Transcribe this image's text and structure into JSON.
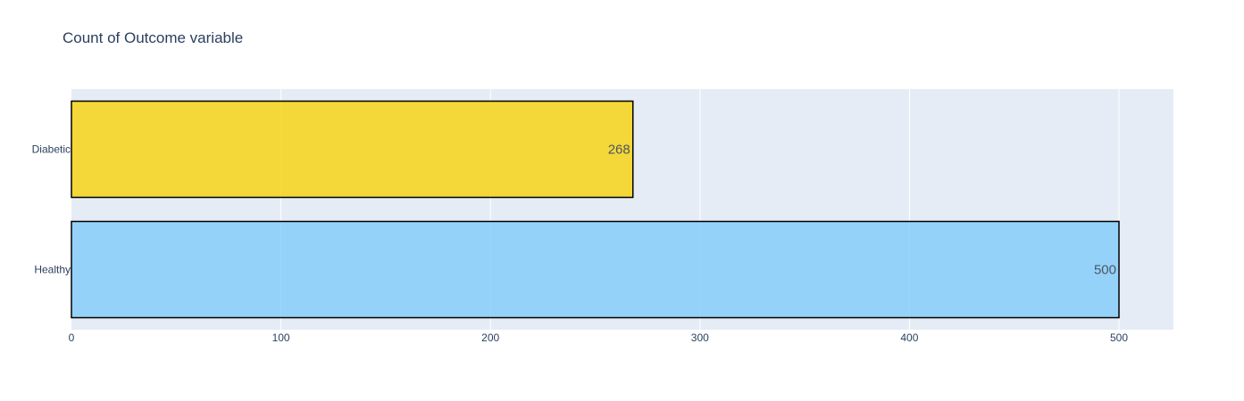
{
  "title": "Count of Outcome variable",
  "colors": {
    "plot_bg": "#e5ecf6",
    "grid": "#ffffff",
    "text": "#2a3f5f",
    "bar_outline": "#000000"
  },
  "chart_data": {
    "type": "bar",
    "orientation": "horizontal",
    "title": "Count of Outcome variable",
    "xlabel": "",
    "ylabel": "",
    "categories": [
      "Healthy",
      "Diabetic"
    ],
    "values": [
      500,
      268
    ],
    "data_labels": [
      "500",
      "268"
    ],
    "bar_colors": [
      "#87cefa",
      "#f7d416"
    ],
    "xlim": [
      0,
      526
    ],
    "x_ticks": [
      0,
      100,
      200,
      300,
      400,
      500
    ],
    "x_tick_labels": [
      "0",
      "100",
      "200",
      "300",
      "400",
      "500"
    ],
    "grid": true,
    "legend": "none"
  }
}
